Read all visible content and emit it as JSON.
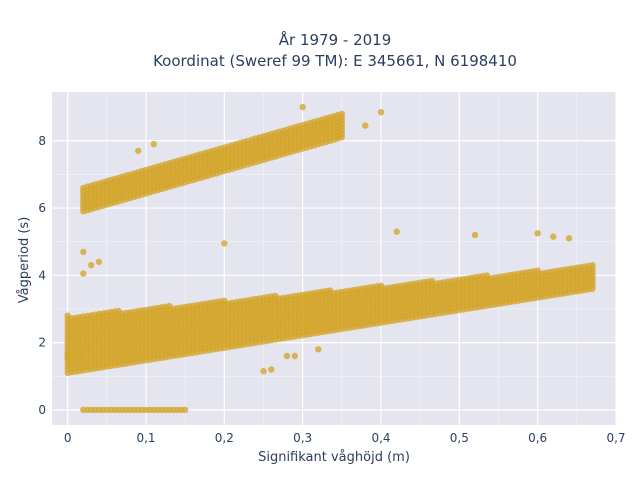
{
  "chart_data": {
    "type": "scatter",
    "title_line1": "År 1979 - 2019",
    "title_line2": "Koordinat (Sweref 99 TM): E 345661, N 6198410",
    "xlabel": "Signifikant våghöjd (m)",
    "ylabel": "Vågperiod (s)",
    "xlim": [
      -0.02,
      0.7
    ],
    "ylim": [
      -0.45,
      9.45
    ],
    "xticks": [
      0,
      0.1,
      0.2,
      0.3,
      0.4,
      0.5,
      0.6,
      0.7
    ],
    "xtick_labels": [
      "0",
      "0,1",
      "0,2",
      "0,3",
      "0,4",
      "0,5",
      "0,6",
      "0,7"
    ],
    "yticks": [
      0,
      2,
      4,
      6,
      8
    ],
    "ytick_labels": [
      "0",
      "2",
      "4",
      "6",
      "8"
    ],
    "grid": true,
    "marker_color": "#d4a52a",
    "plot_bg": "#e5e5ef",
    "series": [
      {
        "clusters": [
          {
            "x_min": 0.02,
            "x_max": 0.15,
            "y_min": 0.0,
            "y_max": 0.0,
            "x_step": 0.005
          },
          {
            "x_min": 0.0,
            "x_max": 0.67,
            "y_min_start": 1.1,
            "y_min_end": 3.6,
            "y_max_start": 2.8,
            "y_max_end": 4.3,
            "x_step": 0.005
          },
          {
            "x_min": 0.02,
            "x_max": 0.35,
            "y_min_start": 5.9,
            "y_min_end": 8.1,
            "y_max_start": 6.6,
            "y_max_end": 8.8,
            "x_step": 0.005
          }
        ],
        "outliers": [
          {
            "x": 0.0,
            "y": 1.55
          },
          {
            "x": 0.0,
            "y": 1.65
          },
          {
            "x": 0.02,
            "y": 4.7
          },
          {
            "x": 0.03,
            "y": 4.3
          },
          {
            "x": 0.04,
            "y": 4.4
          },
          {
            "x": 0.02,
            "y": 4.05
          },
          {
            "x": 0.2,
            "y": 4.95
          },
          {
            "x": 0.28,
            "y": 1.6
          },
          {
            "x": 0.29,
            "y": 1.6
          },
          {
            "x": 0.32,
            "y": 1.8
          },
          {
            "x": 0.3,
            "y": 9.0
          },
          {
            "x": 0.4,
            "y": 8.85
          },
          {
            "x": 0.38,
            "y": 8.45
          },
          {
            "x": 0.33,
            "y": 8.45
          },
          {
            "x": 0.42,
            "y": 5.3
          },
          {
            "x": 0.52,
            "y": 5.2
          },
          {
            "x": 0.6,
            "y": 5.25
          },
          {
            "x": 0.62,
            "y": 5.15
          },
          {
            "x": 0.64,
            "y": 5.1
          },
          {
            "x": 0.09,
            "y": 7.7
          },
          {
            "x": 0.11,
            "y": 7.9
          },
          {
            "x": 0.25,
            "y": 1.15
          },
          {
            "x": 0.26,
            "y": 1.2
          }
        ]
      }
    ]
  }
}
